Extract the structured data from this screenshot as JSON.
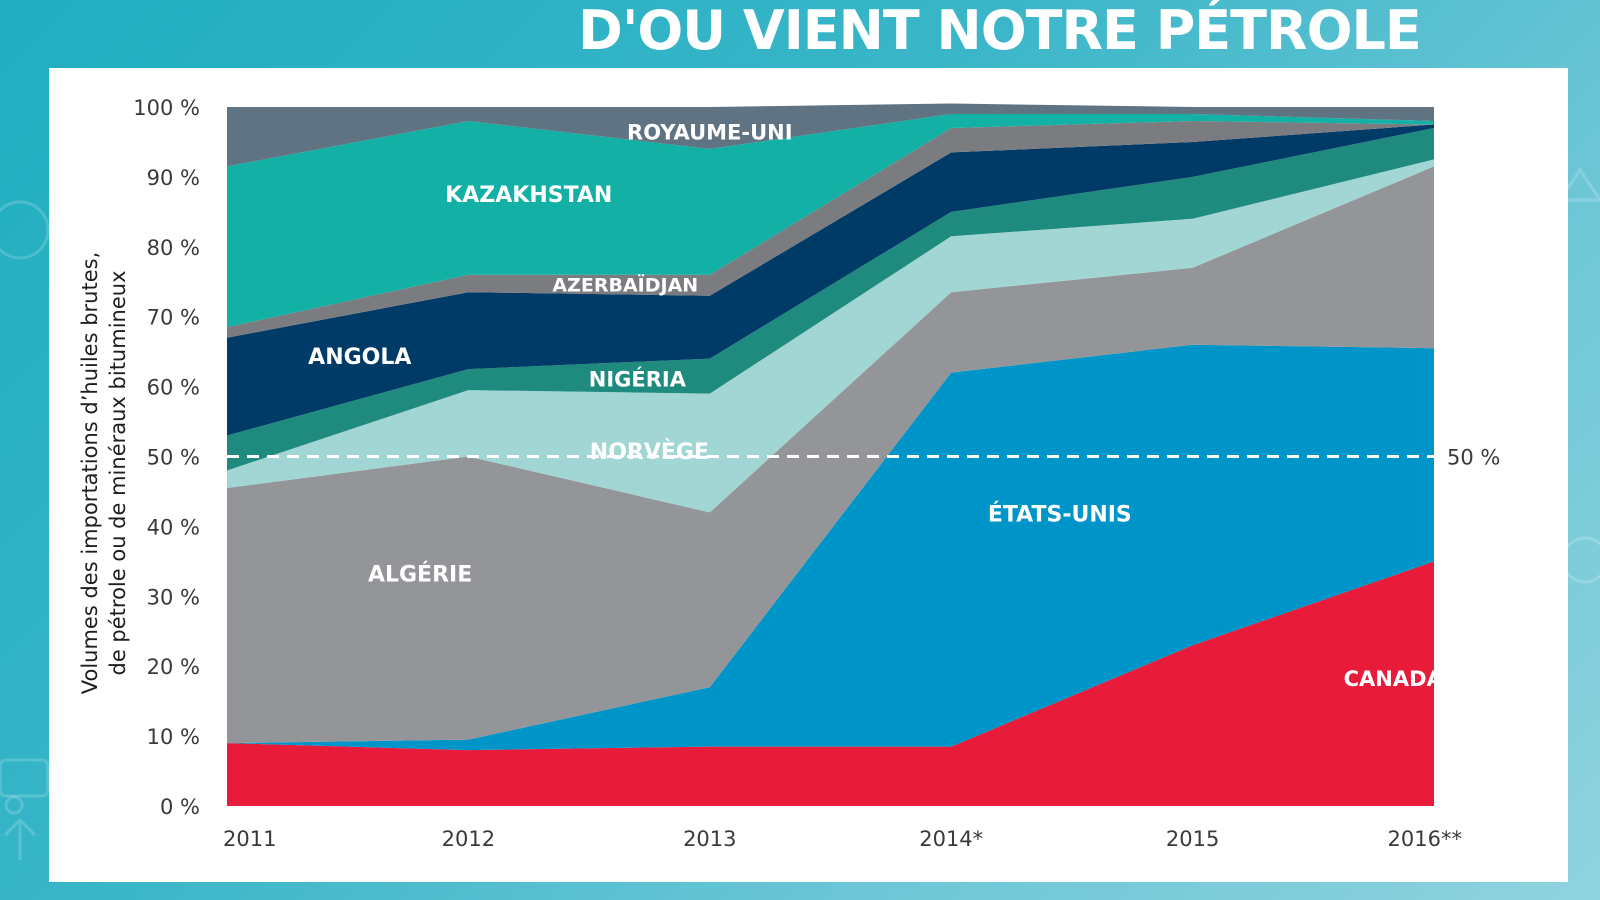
{
  "page": {
    "title": "D'OU VIENT NOTRE PÉTROLE"
  },
  "chart_data": {
    "type": "area",
    "stacked": true,
    "ylabel": "Volumes des importations d’huiles brutes, de pétrole ou de minéraux bitumineux",
    "xlabel": "",
    "categories": [
      "2011",
      "2012",
      "2013",
      "2014*",
      "2015",
      "2016**"
    ],
    "ylim": [
      0,
      100
    ],
    "yticks": [
      "0 %",
      "10 %",
      "20 %",
      "30 %",
      "40 %",
      "50 %",
      "60 %",
      "70 %",
      "80 %",
      "90 %",
      "100 %"
    ],
    "reference_line": {
      "value": 50,
      "label": "50 %",
      "style": "dashed"
    },
    "series": [
      {
        "name": "CANADA¹",
        "color": "#e81c3a",
        "values": [
          9,
          8,
          8.5,
          8.5,
          23,
          35
        ]
      },
      {
        "name": "ÉTATS-UNIS",
        "color": "#0095c8",
        "values": [
          0,
          1.5,
          8.5,
          53.5,
          43,
          30.5
        ]
      },
      {
        "name": "ALGÉRIE",
        "color": "#939598",
        "values": [
          36.5,
          40.5,
          25,
          11.5,
          11,
          26
        ]
      },
      {
        "name": "NORVÈGE",
        "color": "#a2d6d4",
        "values": [
          2.5,
          9.5,
          17,
          8,
          7,
          1
        ]
      },
      {
        "name": "NIGÉRIA",
        "color": "#1f8a7e",
        "values": [
          5,
          3,
          5,
          3.5,
          6,
          4.5
        ]
      },
      {
        "name": "ANGOLA",
        "color": "#003b68",
        "values": [
          14,
          11,
          9,
          8.5,
          5,
          0.5
        ]
      },
      {
        "name": "AZERBAÏDJAN",
        "color": "#7a7c80",
        "values": [
          1.5,
          2.5,
          3,
          3.5,
          3,
          0
        ]
      },
      {
        "name": "KAZAKHSTAN",
        "color": "#13b0a5",
        "values": [
          23,
          22,
          18,
          2,
          1,
          0.5
        ]
      },
      {
        "name": "ROYAUME-UNI",
        "color": "#5f7382",
        "values": [
          8.5,
          2,
          6,
          1.5,
          1,
          2
        ]
      }
    ],
    "legend": "inline labels on areas"
  }
}
